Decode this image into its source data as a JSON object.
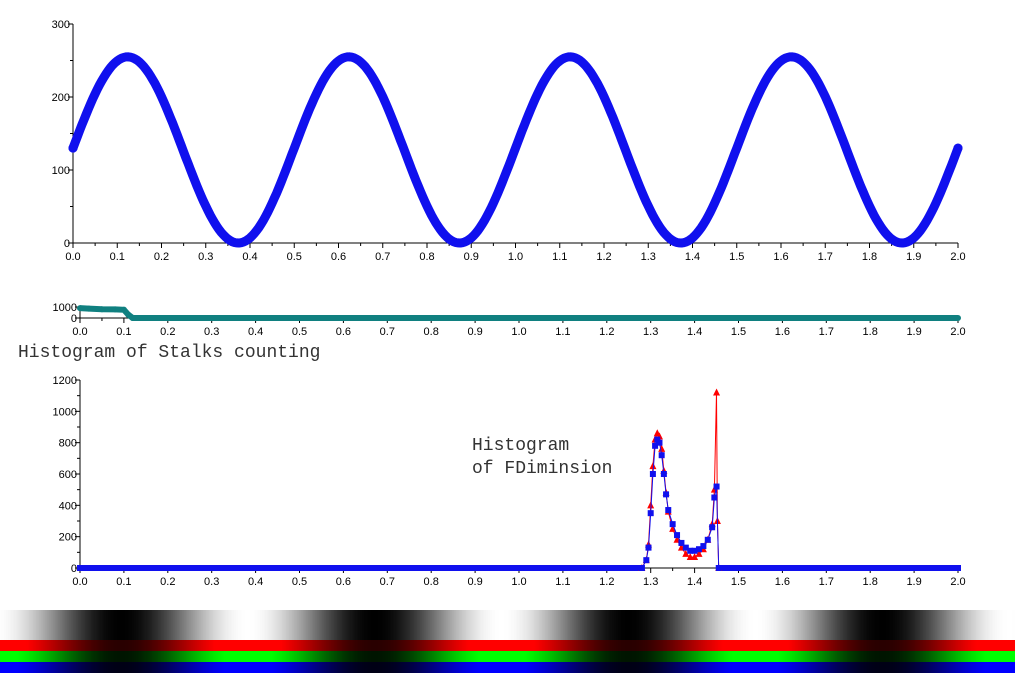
{
  "labels": {
    "histogram_title": "Histogram of Stalks counting",
    "inset_line1": "Histogram",
    "inset_line2": "of FDiminsion"
  },
  "colors": {
    "blue_series": "#1010ee",
    "teal_series": "#108080",
    "red_series": "#ff0000",
    "axis": "#000000"
  },
  "chart_data": [
    {
      "type": "scatter",
      "id": "sine-wave",
      "xlim": [
        0.0,
        2.0
      ],
      "ylim": [
        0,
        300
      ],
      "x_ticks": [
        "0.0",
        "0.1",
        "0.2",
        "0.3",
        "0.4",
        "0.5",
        "0.6",
        "0.7",
        "0.8",
        "0.9",
        "1.0",
        "1.1",
        "1.2",
        "1.3",
        "1.4",
        "1.5",
        "1.6",
        "1.7",
        "1.8",
        "1.9",
        "2.0"
      ],
      "y_ticks": [
        "0",
        "100",
        "200",
        "300"
      ],
      "series": [
        {
          "color": "#1010ee",
          "function": "sinusoid",
          "amplitude": 127.5,
          "offset": 127.5,
          "period": 0.5,
          "start_value": 130,
          "x": [
            0.0,
            0.125,
            0.375,
            0.625,
            0.875,
            1.125,
            1.375,
            1.625,
            1.875,
            2.0
          ],
          "y": [
            130,
            255,
            0,
            255,
            0,
            255,
            0,
            255,
            0,
            130
          ]
        }
      ]
    },
    {
      "type": "line",
      "id": "flat-strip",
      "xlim": [
        0.0,
        2.0
      ],
      "ylim": [
        0,
        1000
      ],
      "x_ticks": [
        "0.0",
        "0.1",
        "0.2",
        "0.3",
        "0.4",
        "0.5",
        "0.6",
        "0.7",
        "0.8",
        "0.9",
        "1.0",
        "1.1",
        "1.2",
        "1.3",
        "1.4",
        "1.5",
        "1.6",
        "1.7",
        "1.8",
        "1.9",
        "2.0"
      ],
      "y_ticks": [
        "0",
        "1000"
      ],
      "series": [
        {
          "color": "#108080",
          "x": [
            0.0,
            0.02,
            0.05,
            0.08,
            0.1,
            0.11,
            0.12,
            2.0
          ],
          "y": [
            900,
            850,
            800,
            780,
            750,
            300,
            0,
            0
          ]
        }
      ]
    },
    {
      "type": "scatter",
      "id": "histogram",
      "xlim": [
        0.0,
        2.0
      ],
      "ylim": [
        0,
        1200
      ],
      "x_ticks": [
        "0.0",
        "0.1",
        "0.2",
        "0.3",
        "0.4",
        "0.5",
        "0.6",
        "0.7",
        "0.8",
        "0.9",
        "1.0",
        "1.1",
        "1.2",
        "1.3",
        "1.4",
        "1.5",
        "1.6",
        "1.7",
        "1.8",
        "1.9",
        "2.0"
      ],
      "y_ticks": [
        "0",
        "200",
        "400",
        "600",
        "800",
        "1000",
        "1200"
      ],
      "series": [
        {
          "color": "#ff0000",
          "marker": "triangle",
          "x": [
            1.28,
            1.29,
            1.295,
            1.3,
            1.305,
            1.31,
            1.315,
            1.32,
            1.325,
            1.33,
            1.335,
            1.34,
            1.35,
            1.36,
            1.37,
            1.38,
            1.39,
            1.4,
            1.41,
            1.42,
            1.43,
            1.44,
            1.445,
            1.45,
            1.452,
            1.455
          ],
          "y": [
            0,
            50,
            150,
            400,
            650,
            820,
            860,
            840,
            760,
            620,
            480,
            360,
            250,
            180,
            130,
            90,
            70,
            70,
            90,
            120,
            180,
            280,
            500,
            1120,
            300,
            0
          ]
        },
        {
          "color": "#1010ee",
          "marker": "square",
          "x": [
            1.28,
            1.29,
            1.295,
            1.3,
            1.305,
            1.31,
            1.315,
            1.32,
            1.325,
            1.33,
            1.335,
            1.34,
            1.35,
            1.36,
            1.37,
            1.38,
            1.39,
            1.4,
            1.41,
            1.42,
            1.43,
            1.44,
            1.445,
            1.45,
            1.455
          ],
          "y": [
            0,
            50,
            130,
            350,
            600,
            780,
            820,
            800,
            720,
            600,
            470,
            370,
            280,
            210,
            160,
            130,
            110,
            110,
            120,
            140,
            180,
            260,
            450,
            520,
            0
          ]
        }
      ]
    }
  ]
}
